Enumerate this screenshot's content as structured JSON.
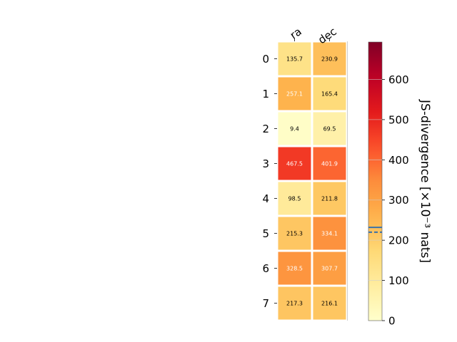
{
  "chart_data": {
    "type": "heatmap",
    "title": "",
    "columns": [
      "ra",
      "dec"
    ],
    "rows": [
      "0",
      "1",
      "2",
      "3",
      "4",
      "5",
      "6",
      "7"
    ],
    "values": [
      [
        135.7,
        230.9
      ],
      [
        257.1,
        165.4
      ],
      [
        9.4,
        69.5
      ],
      [
        467.5,
        401.9
      ],
      [
        98.5,
        211.8
      ],
      [
        215.3,
        334.1
      ],
      [
        328.5,
        307.7
      ],
      [
        217.3,
        216.1
      ]
    ],
    "colorbar": {
      "label": "JS-divergence [×10⁻³ nats]",
      "min": 0,
      "max": 693,
      "ticks": [
        0,
        100,
        200,
        300,
        400,
        500,
        600
      ],
      "colormap": "YlOrRd",
      "reference_lines": [
        {
          "value": 232,
          "style": "solid",
          "color": "#3a72a8"
        },
        {
          "value": 220,
          "style": "dashed",
          "color": "#3a72a8"
        }
      ]
    },
    "grid": false,
    "label_light_threshold": 250
  }
}
